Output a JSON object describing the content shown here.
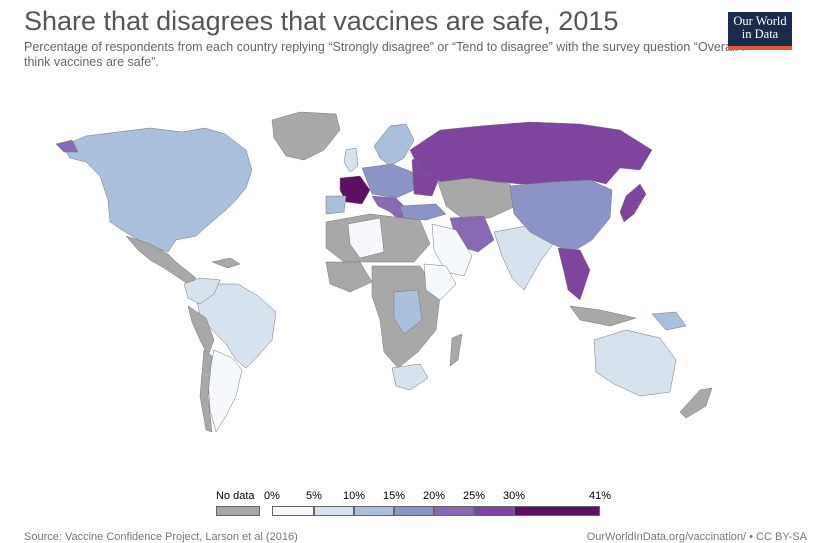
{
  "title": "Share that disagrees that vaccines are safe, 2015",
  "subtitle": "Percentage of respondents from each country replying “Strongly disagree” or “Tend to disagree” with the survey question “Overall I think vaccines are safe”.",
  "logo": {
    "line1": "Our World",
    "line2": "in Data"
  },
  "legend": {
    "no_data_label": "No data",
    "no_data_color": "#a8a8a8",
    "bins": [
      {
        "from": "0%",
        "to": "5%",
        "color": "#f5f9fc"
      },
      {
        "from": "5%",
        "to": "10%",
        "color": "#d6e2ee"
      },
      {
        "from": "10%",
        "to": "15%",
        "color": "#a9bfdc"
      },
      {
        "from": "15%",
        "to": "20%",
        "color": "#8c93c6"
      },
      {
        "from": "20%",
        "to": "25%",
        "color": "#8a69b4"
      },
      {
        "from": "25%",
        "to": "30%",
        "color": "#7e449e"
      },
      {
        "from": "30%",
        "to": "41%",
        "color": "#5b1064"
      }
    ],
    "tick_labels": [
      "0%",
      "5%",
      "10%",
      "15%",
      "20%",
      "25%",
      "30%",
      "41%"
    ]
  },
  "footer": {
    "source": "Source: Vaccine Confidence Project, Larson et al (2016)",
    "credit": "OurWorldInData.org/vaccination/ • CC BY-SA"
  }
}
